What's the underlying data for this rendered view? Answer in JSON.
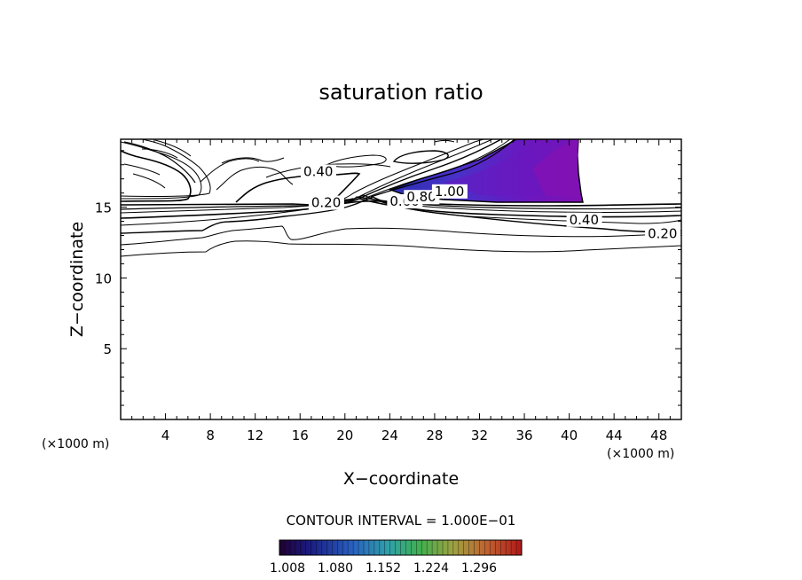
{
  "chart_data": {
    "type": "contour",
    "title": "saturation ratio",
    "xlabel": "X−coordinate",
    "ylabel": "Z−coordinate",
    "x_unit_left": "(×1000 m)",
    "x_unit_right": "(×1000 m)",
    "xlim": [
      0,
      50
    ],
    "ylim": [
      0,
      19.8
    ],
    "x_ticks": [
      4,
      8,
      12,
      16,
      20,
      24,
      28,
      32,
      36,
      40,
      44,
      48
    ],
    "y_ticks": [
      5,
      10,
      15
    ],
    "contour_interval_text": "CONTOUR INTERVAL = 1.000E−01",
    "contour_labels": [
      {
        "text": "0.40",
        "x": 16.3,
        "y": 17.2
      },
      {
        "text": "0.20",
        "x": 17.0,
        "y": 15.0
      },
      {
        "text": "0.60",
        "x": 24.0,
        "y": 15.1
      },
      {
        "text": "0.80",
        "x": 25.5,
        "y": 15.4
      },
      {
        "text": "1.00",
        "x": 28.0,
        "y": 15.8
      },
      {
        "text": "0.40",
        "x": 40.0,
        "y": 13.8
      },
      {
        "text": "0.20",
        "x": 47.0,
        "y": 12.8
      }
    ],
    "colorbar": {
      "tick_labels": [
        "1.008",
        "1.080",
        "1.152",
        "1.224",
        "1.296"
      ],
      "colors": [
        "#2a0040",
        "#1a1a8a",
        "#2a60c0",
        "#30a0a0",
        "#50b050",
        "#a0a040",
        "#c06030",
        "#b02020"
      ]
    },
    "fill_colors": [
      "#7a10b0",
      "#6a20c0",
      "#5030c8",
      "#3a30c0",
      "#2a2aa8"
    ]
  }
}
